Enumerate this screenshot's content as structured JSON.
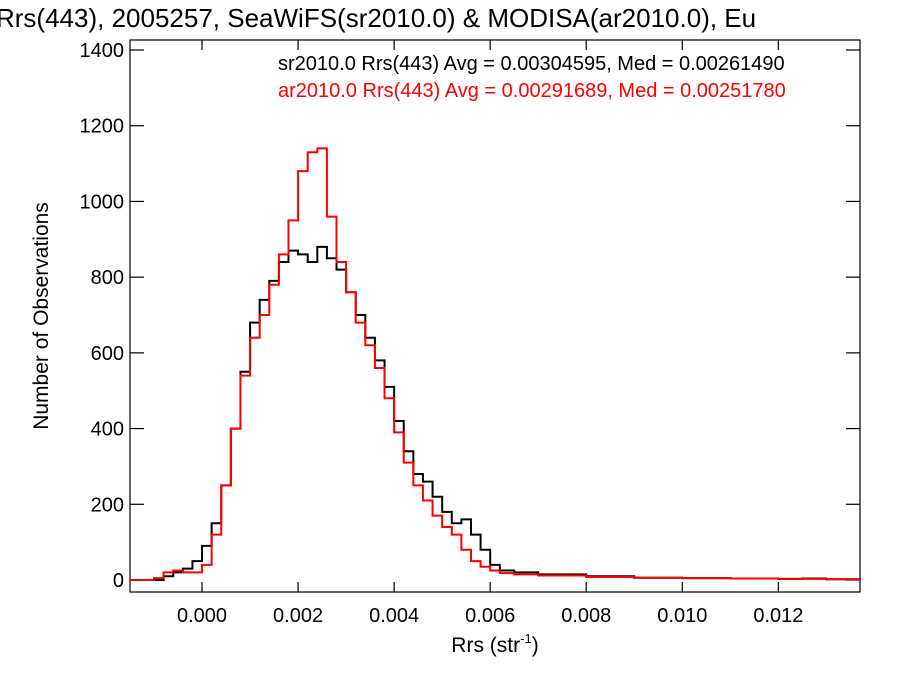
{
  "chart_data": {
    "type": "line",
    "style": "step",
    "title": "Rrs(443), 2005257, SeaWiFS(sr2010.0) & MODISA(ar2010.0), Eu",
    "xlabel": "Rrs (str",
    "xlabel_superscript": "-1",
    "xlabel_suffix": ")",
    "ylabel": "Number of Observations",
    "xlim": [
      -0.0015,
      0.0137
    ],
    "ylim": [
      0,
      1400
    ],
    "xticks": [
      "0.000",
      "0.002",
      "0.004",
      "0.006",
      "0.008",
      "0.010",
      "0.012"
    ],
    "xtick_values": [
      0.0,
      0.002,
      0.004,
      0.006,
      0.008,
      0.01,
      0.012
    ],
    "yticks": [
      "0",
      "200",
      "400",
      "600",
      "800",
      "1000",
      "1200",
      "1400"
    ],
    "ytick_values": [
      0,
      200,
      400,
      600,
      800,
      1000,
      1200,
      1400
    ],
    "grid": false,
    "annotations": [
      {
        "text": "sr2010.0 Rrs(443) Avg = 0.00304595, Med = 0.00261490",
        "color": "#000000"
      },
      {
        "text": "ar2010.0 Rrs(443) Avg = 0.00291689, Med = 0.00251780",
        "color": "#ff0000"
      }
    ],
    "series": [
      {
        "color": "#000000",
        "x": [
          -0.0015,
          -0.001,
          -0.0008,
          -0.0006,
          -0.0004,
          -0.0002,
          0.0,
          0.0002,
          0.0004,
          0.0006,
          0.0008,
          0.001,
          0.0012,
          0.0014,
          0.0016,
          0.0018,
          0.002,
          0.0022,
          0.0024,
          0.0026,
          0.0028,
          0.003,
          0.0032,
          0.0034,
          0.0036,
          0.0038,
          0.004,
          0.0042,
          0.0044,
          0.0046,
          0.0048,
          0.005,
          0.0052,
          0.0054,
          0.0056,
          0.0058,
          0.006,
          0.0062,
          0.0065,
          0.007,
          0.008,
          0.009,
          0.01,
          0.011,
          0.012,
          0.0125,
          0.013,
          0.0137
        ],
        "y": [
          0,
          0,
          10,
          20,
          30,
          50,
          90,
          150,
          250,
          400,
          550,
          680,
          740,
          790,
          840,
          870,
          860,
          840,
          880,
          850,
          820,
          760,
          700,
          640,
          580,
          510,
          420,
          340,
          280,
          260,
          220,
          180,
          150,
          160,
          120,
          80,
          40,
          25,
          20,
          15,
          10,
          6,
          5,
          4,
          3,
          4,
          2,
          1
        ]
      },
      {
        "color": "#ff0000",
        "x": [
          -0.0015,
          -0.001,
          -0.0008,
          -0.0006,
          -0.0004,
          -0.0002,
          0.0,
          0.0002,
          0.0004,
          0.0006,
          0.0008,
          0.001,
          0.0012,
          0.0014,
          0.0016,
          0.0018,
          0.002,
          0.0022,
          0.0024,
          0.0026,
          0.0028,
          0.003,
          0.0032,
          0.0034,
          0.0036,
          0.0038,
          0.004,
          0.0042,
          0.0044,
          0.0046,
          0.0048,
          0.005,
          0.0052,
          0.0054,
          0.0056,
          0.0058,
          0.006,
          0.0062,
          0.0065,
          0.007,
          0.008,
          0.009,
          0.01,
          0.011,
          0.012,
          0.0125,
          0.013,
          0.0137
        ],
        "y": [
          0,
          5,
          20,
          25,
          20,
          20,
          40,
          120,
          250,
          400,
          540,
          640,
          700,
          780,
          860,
          950,
          1080,
          1130,
          1140,
          960,
          840,
          760,
          680,
          620,
          560,
          480,
          390,
          310,
          250,
          210,
          170,
          140,
          120,
          80,
          50,
          35,
          25,
          18,
          15,
          12,
          8,
          6,
          5,
          4,
          3,
          3,
          2,
          1
        ]
      }
    ]
  }
}
